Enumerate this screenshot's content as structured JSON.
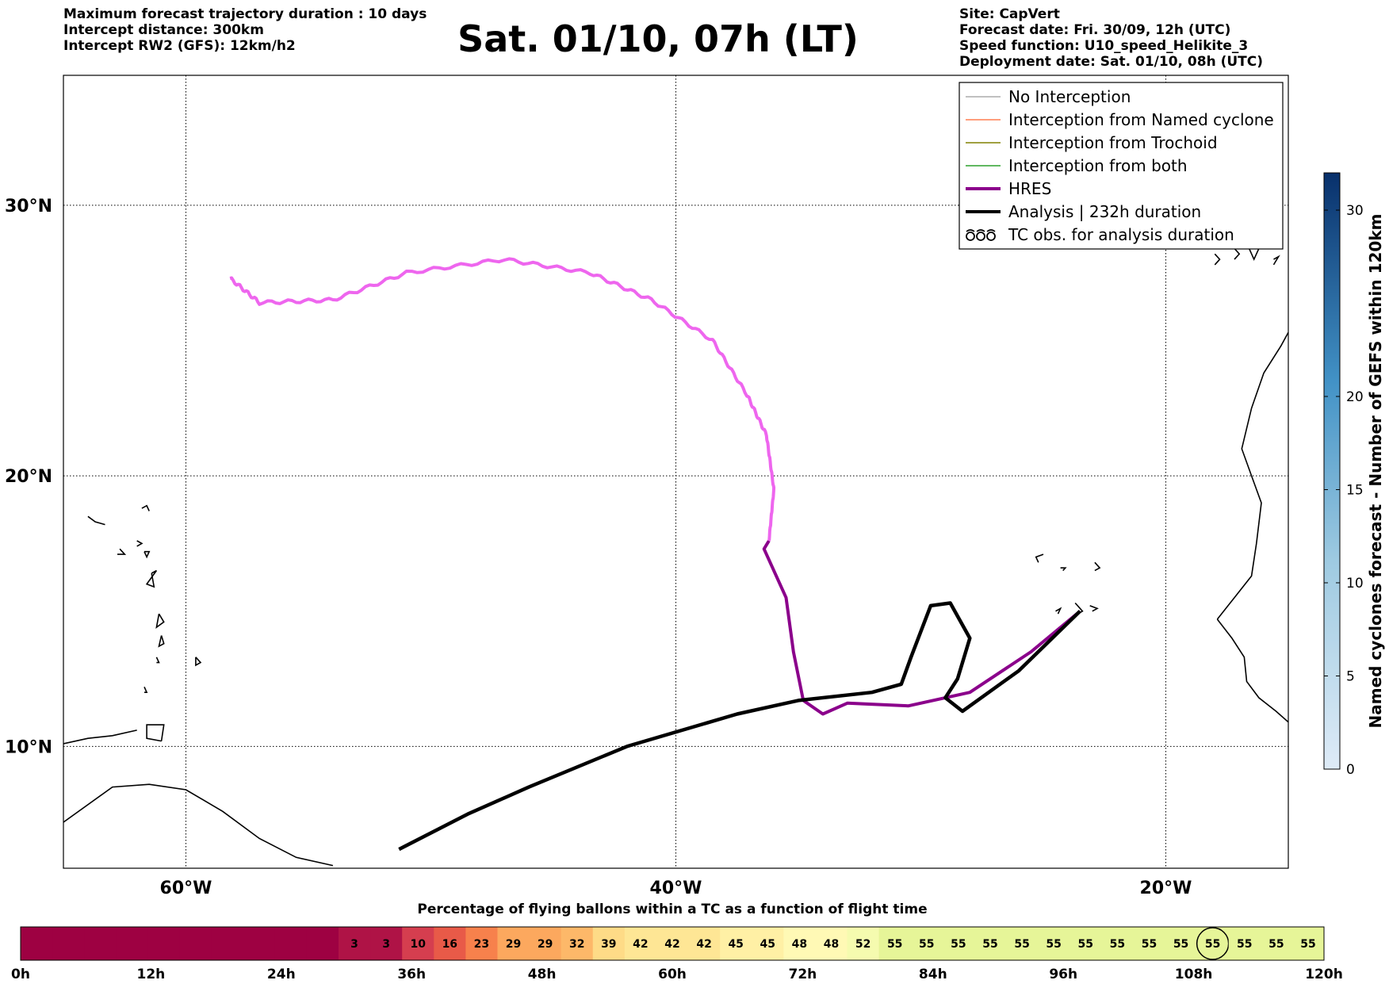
{
  "header": {
    "left": [
      "Maximum forecast trajectory duration : 10 days",
      "Intercept distance: 300km",
      "Intercept RW2 (GFS):  12km/h2"
    ],
    "title": "Sat. 01/10, 07h (LT)",
    "right": [
      "Site: CapVert",
      "Forecast date: Fri. 30/09, 12h (UTC)",
      "Speed function: U10_speed_Helikite_3",
      "Deployment date: Sat. 01/10, 08h (UTC)"
    ]
  },
  "colors": {
    "no_interception": "#c8c8c8",
    "named_cyclone": "#ff7f50",
    "trochoid": "#808000",
    "both": "#2ca02c",
    "hres": "#8b008b",
    "hres_upper": "#ee66ee",
    "analysis": "#000000",
    "yellow_tracks": "#eeee88",
    "land": "#000000"
  },
  "legend": [
    {
      "label": "No Interception",
      "kind": "line",
      "color": "#808080",
      "width": 1
    },
    {
      "label": "Interception from Named cyclone",
      "kind": "line",
      "color": "#ff7f50",
      "width": 1.5
    },
    {
      "label": "Interception from Trochoid",
      "kind": "line",
      "color": "#808000",
      "width": 1.5
    },
    {
      "label": "Interception from both",
      "kind": "line",
      "color": "#2ca02c",
      "width": 1.5
    },
    {
      "label": "HRES",
      "kind": "line",
      "color": "#8b008b",
      "width": 4
    },
    {
      "label": "Analysis | 232h duration",
      "kind": "line",
      "color": "#000000",
      "width": 4
    },
    {
      "label": "TC obs. for analysis duration",
      "kind": "symbol",
      "icon": "tc-symbol-icon"
    }
  ],
  "chart_data": {
    "type": "map-trajectories",
    "map": {
      "lon_range": [
        -65,
        -15
      ],
      "lat_range": [
        5.5,
        34.8
      ],
      "lat_ticks": [
        {
          "value": 30,
          "label": "30°N"
        },
        {
          "value": 20,
          "label": "20°N"
        },
        {
          "value": 10,
          "label": "10°N"
        }
      ],
      "lon_ticks": [
        {
          "value": -60,
          "label": "60°W"
        },
        {
          "value": -40,
          "label": "40°W"
        },
        {
          "value": -20,
          "label": "20°W"
        }
      ],
      "grid": true,
      "legend_position": "top-right"
    },
    "release_point": {
      "lon": -23.5,
      "lat": 15.0
    },
    "series": [
      {
        "name": "HRES",
        "color": "#8b008b",
        "points": [
          [
            -23.5,
            15.0
          ],
          [
            -25.5,
            13.5
          ],
          [
            -28.0,
            12.0
          ],
          [
            -30.5,
            11.5
          ],
          [
            -33.0,
            11.6
          ],
          [
            -34.0,
            11.2
          ],
          [
            -34.8,
            11.7
          ],
          [
            -35.2,
            13.5
          ],
          [
            -35.5,
            15.5
          ],
          [
            -36.4,
            17.3
          ],
          [
            -36.2,
            17.6
          ],
          [
            -36.0,
            19.5
          ],
          [
            -36.3,
            21.5
          ],
          [
            -37.1,
            23.0
          ],
          [
            -38.5,
            25.0
          ],
          [
            -41.0,
            26.5
          ],
          [
            -43.5,
            27.5
          ],
          [
            -47.0,
            28.0
          ],
          [
            -51.0,
            27.5
          ],
          [
            -54.0,
            26.5
          ],
          [
            -57.0,
            26.4
          ],
          [
            -58.2,
            27.3
          ]
        ]
      },
      {
        "name": "Analysis | 232h duration",
        "color": "#000000",
        "points": [
          [
            -23.5,
            15.0
          ],
          [
            -26.0,
            12.8
          ],
          [
            -28.3,
            11.3
          ],
          [
            -29.0,
            11.8
          ],
          [
            -28.5,
            12.5
          ],
          [
            -28.0,
            14.0
          ],
          [
            -28.8,
            15.3
          ],
          [
            -29.6,
            15.2
          ],
          [
            -30.4,
            13.3
          ],
          [
            -30.8,
            12.3
          ],
          [
            -32.0,
            12.0
          ],
          [
            -35.0,
            11.7
          ],
          [
            -37.5,
            11.2
          ],
          [
            -42.0,
            10.0
          ],
          [
            -46.0,
            8.5
          ],
          [
            -48.5,
            7.5
          ],
          [
            -51.3,
            6.2
          ]
        ]
      },
      {
        "name": "Interception from Trochoid",
        "color": "#808000",
        "points": []
      },
      {
        "name": "No Interception",
        "color": "#c8c8c8",
        "points": []
      }
    ]
  },
  "colorbar_right": {
    "label": "Named cyclones forecast - Number of GEFS within 120km",
    "ticks": [
      0,
      5,
      10,
      15,
      20,
      30
    ],
    "range": [
      0,
      32
    ]
  },
  "percentage_bar": {
    "title": "Percentage of flying ballons within a TC as a function of flight time",
    "values": [
      null,
      null,
      null,
      null,
      null,
      null,
      null,
      null,
      null,
      null,
      3,
      3,
      10,
      16,
      23,
      29,
      29,
      32,
      39,
      42,
      42,
      42,
      45,
      45,
      48,
      48,
      52,
      55,
      55,
      55,
      55,
      55,
      55,
      55,
      55,
      55,
      55,
      55,
      55,
      55,
      55
    ],
    "circled_index": 37,
    "hour_labels": [
      "0h",
      "12h",
      "24h",
      "36h",
      "48h",
      "60h",
      "72h",
      "84h",
      "96h",
      "108h",
      "120h"
    ]
  }
}
